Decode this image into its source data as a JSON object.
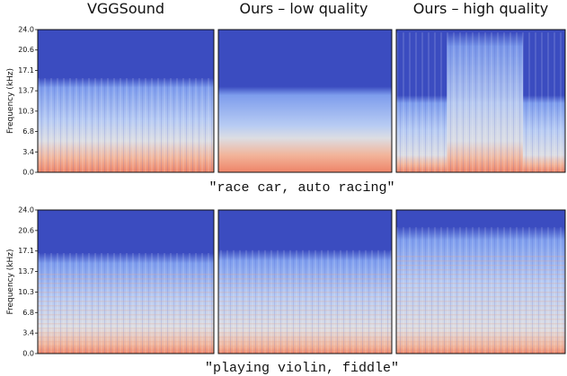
{
  "columns": [
    "VGGSound",
    "Ours – low quality",
    "Ours – high quality"
  ],
  "y_axis_label": "Frequency (kHz)",
  "y_tick_labels": [
    "24.0",
    "20.6",
    "17.1",
    "13.7",
    "10.3",
    "6.8",
    "3.4",
    "0.0"
  ],
  "rows": [
    {
      "caption": "\"race car, auto racing\""
    },
    {
      "caption": "\"playing violin, fiddle\""
    }
  ]
}
